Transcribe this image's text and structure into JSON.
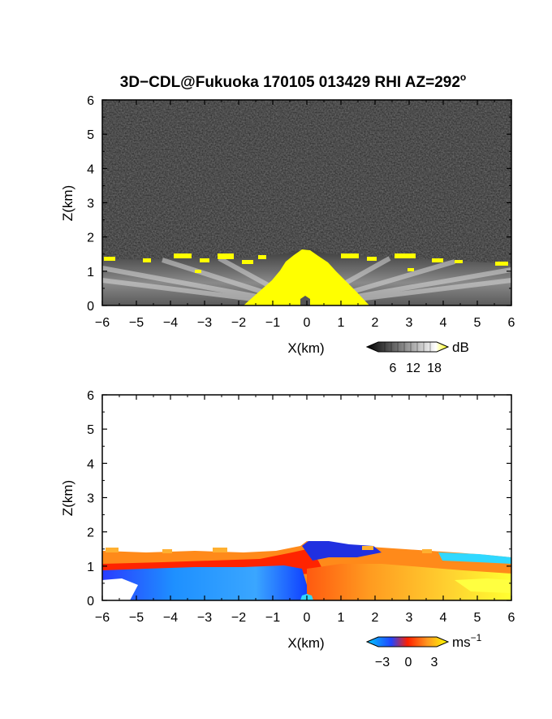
{
  "figure": {
    "title": "3D−CDL@Fukuoka 170105 013429 RHI AZ=292",
    "title_superscript": "o"
  },
  "chart_data": [
    {
      "type": "heatmap",
      "quantity": "signal intensity",
      "xlabel": "X(km)",
      "ylabel": "Z(km)",
      "xlim": [
        -6,
        6
      ],
      "ylim": [
        0,
        6
      ],
      "xticks": [
        "−6",
        "−5",
        "−4",
        "−3",
        "−2",
        "−1",
        "0",
        "1",
        "2",
        "3",
        "4",
        "5",
        "6"
      ],
      "yticks": [
        "0",
        "1",
        "2",
        "3",
        "4",
        "5",
        "6"
      ],
      "background": "dark gray noise above ~1.3 km",
      "colorbar": {
        "unit": "dB",
        "ticks": [
          "6",
          "12",
          "18"
        ],
        "colors": [
          "#000000",
          "#ffffff",
          "#ffff00"
        ]
      },
      "top_of_echo_km": [
        {
          "x": -6,
          "z": 1.4
        },
        {
          "x": -5,
          "z": 1.3
        },
        {
          "x": -4,
          "z": 1.4
        },
        {
          "x": -3,
          "z": 1.3
        },
        {
          "x": -2,
          "z": 1.3
        },
        {
          "x": -1,
          "z": 1.5
        },
        {
          "x": 0,
          "z": 1.6
        },
        {
          "x": 1,
          "z": 1.5
        },
        {
          "x": 2,
          "z": 1.5
        },
        {
          "x": 3,
          "z": 1.4
        },
        {
          "x": 4,
          "z": 1.3
        },
        {
          "x": 5,
          "z": 1.3
        },
        {
          "x": 6,
          "z": 1.2
        }
      ]
    },
    {
      "type": "heatmap",
      "quantity": "Doppler velocity",
      "xlabel": "X(km)",
      "ylabel": "Z(km)",
      "xlim": [
        -6,
        6
      ],
      "ylim": [
        0,
        6
      ],
      "xticks": [
        "−6",
        "−5",
        "−4",
        "−3",
        "−2",
        "−1",
        "0",
        "1",
        "2",
        "3",
        "4",
        "5",
        "6"
      ],
      "yticks": [
        "0",
        "1",
        "2",
        "3",
        "4",
        "5",
        "6"
      ],
      "colorbar": {
        "unit": "ms",
        "unit_superscript": "−1",
        "ticks": [
          "−3",
          "0",
          "3"
        ],
        "colors": [
          "#00c8ff",
          "#2244ff",
          "#ff2000",
          "#ff9a20",
          "#ffff00"
        ]
      },
      "top_of_echo_km": [
        {
          "x": -6,
          "z": 1.4
        },
        {
          "x": -5,
          "z": 1.4
        },
        {
          "x": -4,
          "z": 1.4
        },
        {
          "x": -3,
          "z": 1.4
        },
        {
          "x": -2,
          "z": 1.4
        },
        {
          "x": -1,
          "z": 1.4
        },
        {
          "x": 0,
          "z": 1.6
        },
        {
          "x": 1,
          "z": 1.6
        },
        {
          "x": 2,
          "z": 1.5
        },
        {
          "x": 3,
          "z": 1.5
        },
        {
          "x": 4,
          "z": 1.4
        },
        {
          "x": 5,
          "z": 1.3
        },
        {
          "x": 6,
          "z": 1.2
        }
      ]
    }
  ]
}
